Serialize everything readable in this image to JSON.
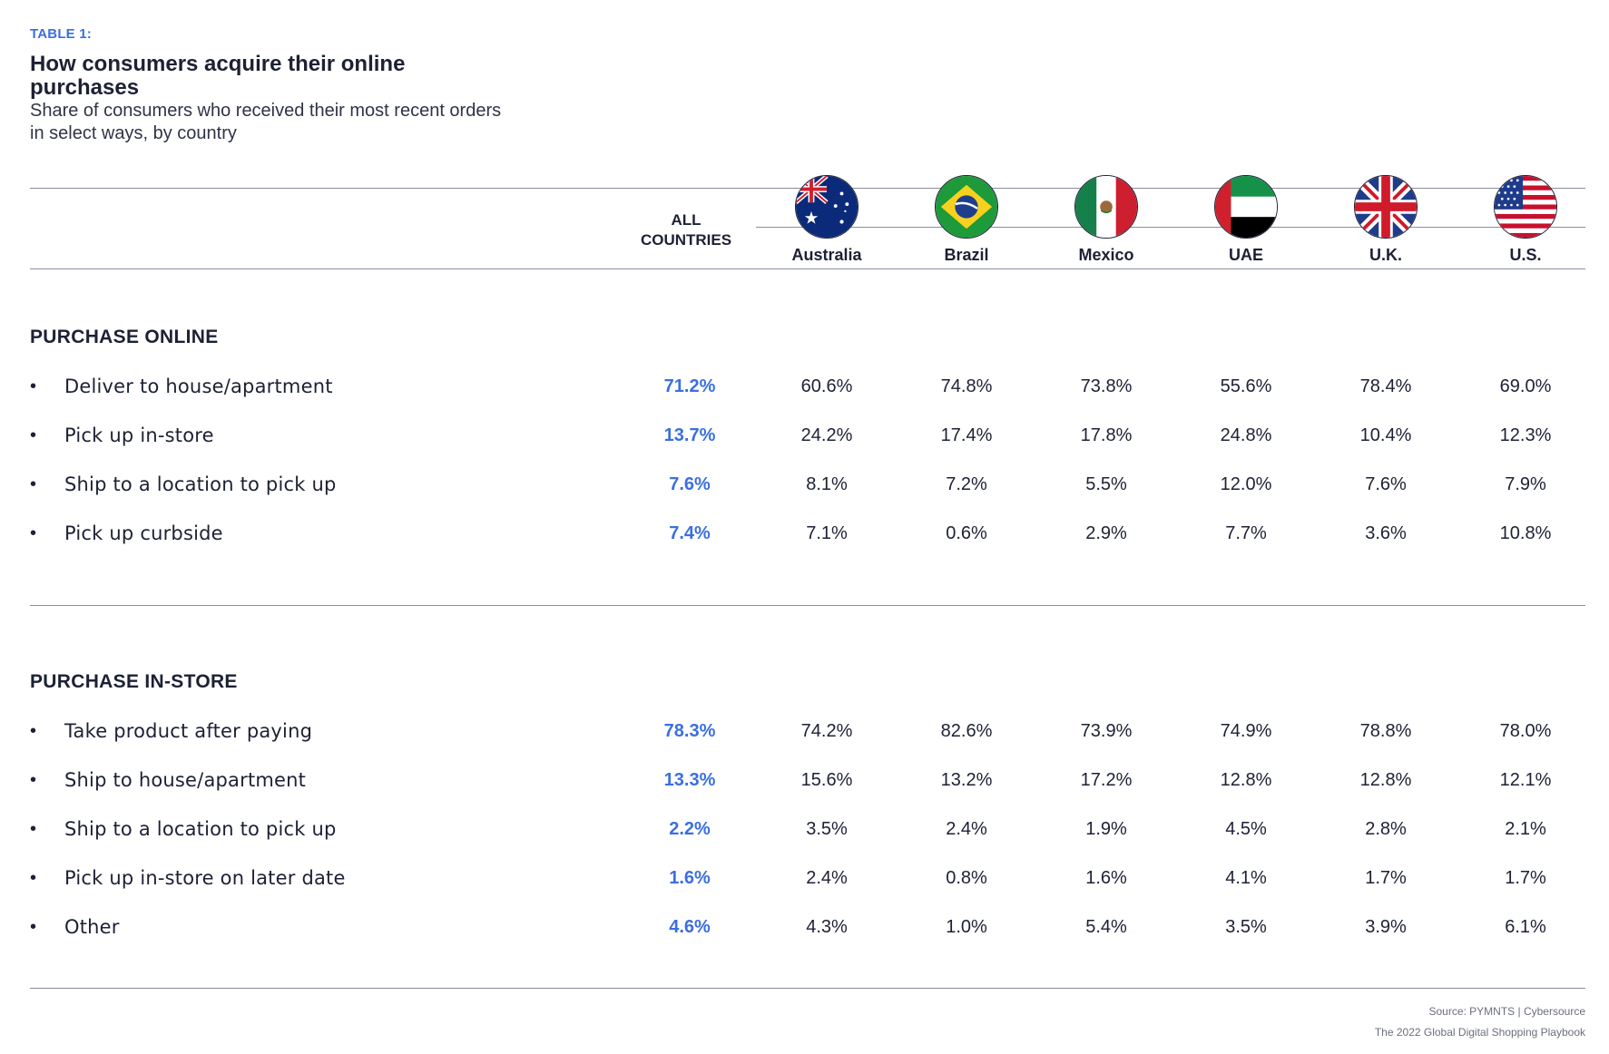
{
  "chart_data": {
    "type": "table",
    "eyebrow": "TABLE 1:",
    "title": "How consumers acquire their online purchases",
    "subtitle": "Share of consumers who received their most recent orders in select ways, by country",
    "columns": [
      "ALL COUNTRIES",
      "Australia",
      "Brazil",
      "Mexico",
      "UAE",
      "U.K.",
      "U.S."
    ],
    "all_header_lines": [
      "ALL",
      "COUNTRIES"
    ],
    "countries": [
      "Australia",
      "Brazil",
      "Mexico",
      "UAE",
      "U.K.",
      "U.S."
    ],
    "sections": [
      {
        "name": "PURCHASE ONLINE",
        "rows": [
          {
            "label": "Deliver to house/apartment",
            "values": [
              "71.2%",
              "60.6%",
              "74.8%",
              "73.8%",
              "55.6%",
              "78.4%",
              "69.0%"
            ]
          },
          {
            "label": "Pick up in-store",
            "values": [
              "13.7%",
              "24.2%",
              "17.4%",
              "17.8%",
              "24.8%",
              "10.4%",
              "12.3%"
            ]
          },
          {
            "label": "Ship to a location to pick up",
            "values": [
              "7.6%",
              "8.1%",
              "7.2%",
              "5.5%",
              "12.0%",
              "7.6%",
              "7.9%"
            ]
          },
          {
            "label": "Pick up curbside",
            "values": [
              "7.4%",
              "7.1%",
              "0.6%",
              "2.9%",
              "7.7%",
              "3.6%",
              "10.8%"
            ]
          }
        ]
      },
      {
        "name": "PURCHASE IN-STORE",
        "rows": [
          {
            "label": "Take product after paying",
            "values": [
              "78.3%",
              "74.2%",
              "82.6%",
              "73.9%",
              "74.9%",
              "78.8%",
              "78.0%"
            ]
          },
          {
            "label": "Ship to house/apartment",
            "values": [
              "13.3%",
              "15.6%",
              "13.2%",
              "17.2%",
              "12.8%",
              "12.8%",
              "12.1%"
            ]
          },
          {
            "label": "Ship to a location to pick up",
            "values": [
              "2.2%",
              "3.5%",
              "2.4%",
              "1.9%",
              "4.5%",
              "2.8%",
              "2.1%"
            ]
          },
          {
            "label": "Pick up in-store on later date",
            "values": [
              "1.6%",
              "2.4%",
              "0.8%",
              "1.6%",
              "4.1%",
              "1.7%",
              "1.7%"
            ]
          },
          {
            "label": "Other",
            "values": [
              "4.6%",
              "4.3%",
              "1.0%",
              "5.4%",
              "3.5%",
              "3.9%",
              "6.1%"
            ]
          }
        ]
      }
    ],
    "bullet": "•",
    "source": "Source: PYMNTS | Cybersource",
    "publication": "The 2022 Global Digital Shopping Playbook",
    "colors": {
      "accent": "#3a6fe0",
      "text": "#1c2134",
      "rule": "#8a8e99"
    },
    "flag_icons": [
      "australia-flag-icon",
      "brazil-flag-icon",
      "mexico-flag-icon",
      "uae-flag-icon",
      "uk-flag-icon",
      "us-flag-icon"
    ]
  }
}
